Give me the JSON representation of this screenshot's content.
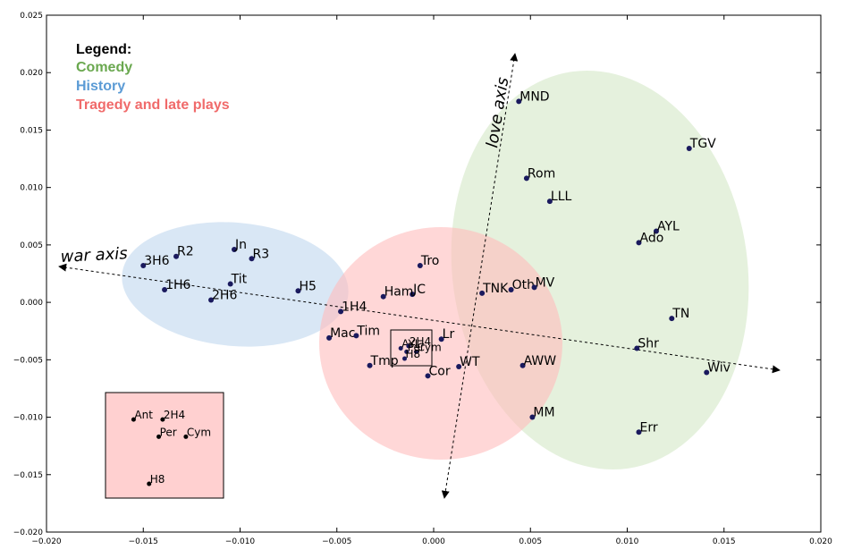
{
  "chart_data": {
    "type": "scatter",
    "xlim": [
      -0.02,
      0.02
    ],
    "ylim": [
      -0.02,
      0.025
    ],
    "x_ticks": [
      -0.02,
      -0.015,
      -0.01,
      -0.005,
      0.0,
      0.005,
      0.01,
      0.015,
      0.02
    ],
    "y_ticks": [
      -0.02,
      -0.015,
      -0.01,
      -0.005,
      0.0,
      0.005,
      0.01,
      0.015,
      0.02,
      0.025
    ],
    "x_tick_labels": [
      "−0.020",
      "−0.015",
      "−0.010",
      "−0.005",
      "0.000",
      "0.005",
      "0.010",
      "0.015",
      "0.020"
    ],
    "y_tick_labels": [
      "−0.020",
      "−0.015",
      "−0.010",
      "−0.005",
      "0.000",
      "0.005",
      "0.010",
      "0.015",
      "0.020",
      "0.025"
    ],
    "grid": false,
    "legend": {
      "title": "Legend:",
      "placement": "top-left",
      "entries": [
        {
          "label": "Comedy",
          "color": "#6aa84f"
        },
        {
          "label": "History",
          "color": "#5b9bd5"
        },
        {
          "label": "Tragedy and late plays",
          "color": "#f06a6a"
        }
      ]
    },
    "point_color": "#1a1a5e",
    "points": [
      {
        "label": "MND",
        "x": 0.0044,
        "y": 0.0175
      },
      {
        "label": "TGV",
        "x": 0.0132,
        "y": 0.0134
      },
      {
        "label": "Rom",
        "x": 0.0048,
        "y": 0.0108
      },
      {
        "label": "LLL",
        "x": 0.006,
        "y": 0.0088
      },
      {
        "label": "AYL",
        "x": 0.0115,
        "y": 0.0062
      },
      {
        "label": "Ado",
        "x": 0.0106,
        "y": 0.0052
      },
      {
        "label": "Oth",
        "x": 0.004,
        "y": 0.0011
      },
      {
        "label": "MV",
        "x": 0.0052,
        "y": 0.0013
      },
      {
        "label": "TNK",
        "x": 0.0025,
        "y": 0.0008
      },
      {
        "label": "TN",
        "x": 0.0123,
        "y": -0.0014
      },
      {
        "label": "Shr",
        "x": 0.0105,
        "y": -0.004
      },
      {
        "label": "Wiv",
        "x": 0.0141,
        "y": -0.0061
      },
      {
        "label": "AWW",
        "x": 0.0046,
        "y": -0.0055
      },
      {
        "label": "MM",
        "x": 0.0051,
        "y": -0.01
      },
      {
        "label": "Err",
        "x": 0.0106,
        "y": -0.0113
      },
      {
        "label": "Tro",
        "x": -0.0007,
        "y": 0.0032
      },
      {
        "label": "JC",
        "x": -0.0011,
        "y": 0.0007
      },
      {
        "label": "Ham",
        "x": -0.0026,
        "y": 0.0005
      },
      {
        "label": "1H4",
        "x": -0.0048,
        "y": -0.0008
      },
      {
        "label": "Mac",
        "x": -0.0054,
        "y": -0.0031
      },
      {
        "label": "Tim",
        "x": -0.004,
        "y": -0.0029
      },
      {
        "label": "Lr",
        "x": 0.0004,
        "y": -0.0032
      },
      {
        "label": "WT",
        "x": 0.0013,
        "y": -0.0056
      },
      {
        "label": "Cor",
        "x": -0.0003,
        "y": -0.0064
      },
      {
        "label": "Tmp",
        "x": -0.0033,
        "y": -0.0055
      },
      {
        "label": "R2",
        "x": -0.0133,
        "y": 0.004
      },
      {
        "label": "3H6",
        "x": -0.015,
        "y": 0.0032
      },
      {
        "label": "Jn",
        "x": -0.0103,
        "y": 0.0046
      },
      {
        "label": "R3",
        "x": -0.0094,
        "y": 0.0038
      },
      {
        "label": "Tit",
        "x": -0.0105,
        "y": 0.0016
      },
      {
        "label": "1H6",
        "x": -0.0139,
        "y": 0.0011
      },
      {
        "label": "2H6",
        "x": -0.0115,
        "y": 0.0002
      },
      {
        "label": "H5",
        "x": -0.007,
        "y": 0.001
      }
    ],
    "cluster_points": [
      {
        "label": "AYL",
        "x": -0.0017,
        "y": -0.004
      },
      {
        "label": "2H4",
        "x": -0.0013,
        "y": -0.0038
      },
      {
        "label": "Cym",
        "x": -0.0009,
        "y": -0.0043
      },
      {
        "label": "Per",
        "x": -0.0014,
        "y": -0.0043
      },
      {
        "label": "H8",
        "x": -0.0015,
        "y": -0.0049
      }
    ],
    "inset": {
      "points": [
        {
          "label": "Ant",
          "x": -0.0155,
          "y": -0.0102
        },
        {
          "label": "2H4",
          "x": -0.014,
          "y": -0.0102
        },
        {
          "label": "Per",
          "x": -0.0142,
          "y": -0.0117
        },
        {
          "label": "Cym",
          "x": -0.0128,
          "y": -0.0117
        },
        {
          "label": "H8",
          "x": -0.0147,
          "y": -0.0158
        }
      ]
    },
    "annotations": {
      "war_axis": "war axis",
      "love_axis": "love axis"
    },
    "regions": [
      {
        "group": "Comedy",
        "color": "#d4e8c6"
      },
      {
        "group": "History",
        "color": "#c4daf0"
      },
      {
        "group": "Tragedy and late plays",
        "color": "#ffbcbc"
      }
    ]
  }
}
